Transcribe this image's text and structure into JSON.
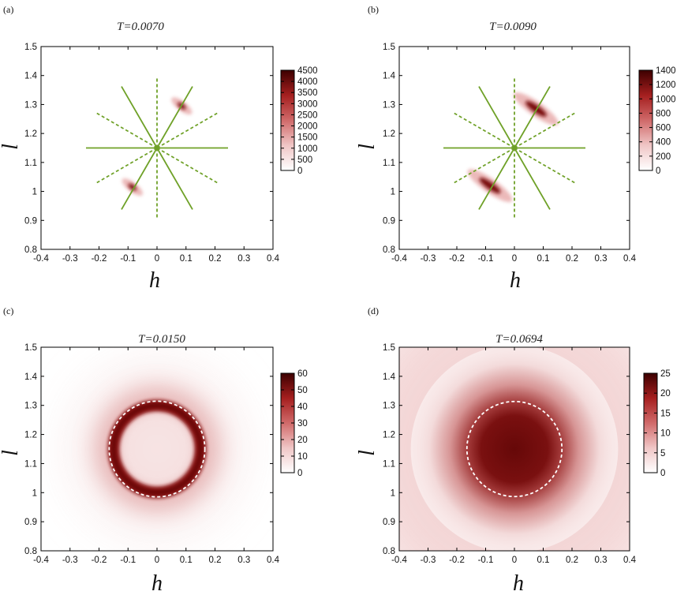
{
  "chart_data": [
    {
      "type": "heatmap",
      "panel_label": "(a)",
      "title": "T=0.0070",
      "xlabel": "h",
      "ylabel": "l",
      "xlim": [
        -0.4,
        0.4
      ],
      "ylim": [
        0.8,
        1.5
      ],
      "xticks": [
        "-0.4",
        "-0.3",
        "-0.2",
        "-0.1",
        "0",
        "0.1",
        "0.2",
        "0.3",
        "0.4"
      ],
      "yticks": [
        "0.8",
        "0.9",
        "1",
        "1.1",
        "1.2",
        "1.3",
        "1.4",
        "1.5"
      ],
      "colorbar": {
        "min": 0,
        "max": 4500,
        "ticks": [
          "0",
          "500",
          "1000",
          "1500",
          "2000",
          "2500",
          "3000",
          "3500",
          "4000",
          "4500"
        ]
      },
      "overlay": "star",
      "center": [
        0,
        1.15
      ],
      "peaks": [
        {
          "h": 0.085,
          "l": 1.295,
          "intensity": 4500
        },
        {
          "h": -0.085,
          "l": 1.015,
          "intensity": 4500
        }
      ]
    },
    {
      "type": "heatmap",
      "panel_label": "(b)",
      "title": "T=0.0090",
      "xlabel": "h",
      "ylabel": "l",
      "xlim": [
        -0.4,
        0.4
      ],
      "ylim": [
        0.8,
        1.5
      ],
      "xticks": [
        "-0.4",
        "-0.3",
        "-0.2",
        "-0.1",
        "0",
        "0.1",
        "0.2",
        "0.3",
        "0.4"
      ],
      "yticks": [
        "0.8",
        "0.9",
        "1",
        "1.1",
        "1.2",
        "1.3",
        "1.4",
        "1.5"
      ],
      "colorbar": {
        "min": 0,
        "max": 1400,
        "ticks": [
          "0",
          "200",
          "400",
          "600",
          "800",
          "1000",
          "1200",
          "1400"
        ]
      },
      "overlay": "star",
      "center": [
        0,
        1.15
      ],
      "peaks": [
        {
          "h": 0.075,
          "l": 1.285,
          "intensity": 1400
        },
        {
          "h": -0.085,
          "l": 1.02,
          "intensity": 1400
        }
      ]
    },
    {
      "type": "heatmap",
      "panel_label": "(c)",
      "title": "T=0.0150",
      "xlabel": "h",
      "ylabel": "l",
      "xlim": [
        -0.4,
        0.4
      ],
      "ylim": [
        0.8,
        1.5
      ],
      "xticks": [
        "-0.4",
        "-0.3",
        "-0.2",
        "-0.1",
        "0",
        "0.1",
        "0.2",
        "0.3",
        "0.4"
      ],
      "yticks": [
        "0.8",
        "0.9",
        "1",
        "1.1",
        "1.2",
        "1.3",
        "1.4",
        "1.5"
      ],
      "colorbar": {
        "min": 0,
        "max": 60,
        "ticks": [
          "0",
          "10",
          "20",
          "30",
          "40",
          "50",
          "60"
        ]
      },
      "overlay": "circle",
      "center": [
        0,
        1.15
      ],
      "circle_radius": 0.165,
      "pattern": "ring",
      "ring_radius": 0.15,
      "peak_intensity": 60
    },
    {
      "type": "heatmap",
      "panel_label": "(d)",
      "title": "T=0.0694",
      "xlabel": "h",
      "ylabel": "l",
      "xlim": [
        -0.4,
        0.4
      ],
      "ylim": [
        0.8,
        1.5
      ],
      "xticks": [
        "-0.4",
        "-0.3",
        "-0.2",
        "-0.1",
        "0",
        "0.1",
        "0.2",
        "0.3",
        "0.4"
      ],
      "yticks": [
        "0.8",
        "0.9",
        "1",
        "1.1",
        "1.2",
        "1.3",
        "1.4",
        "1.5"
      ],
      "colorbar": {
        "min": 0,
        "max": 25,
        "ticks": [
          "0",
          "5",
          "10",
          "15",
          "20",
          "25"
        ]
      },
      "overlay": "circle",
      "center": [
        0,
        1.15
      ],
      "circle_radius": 0.165,
      "pattern": "disk",
      "peak_intensity": 25
    }
  ]
}
